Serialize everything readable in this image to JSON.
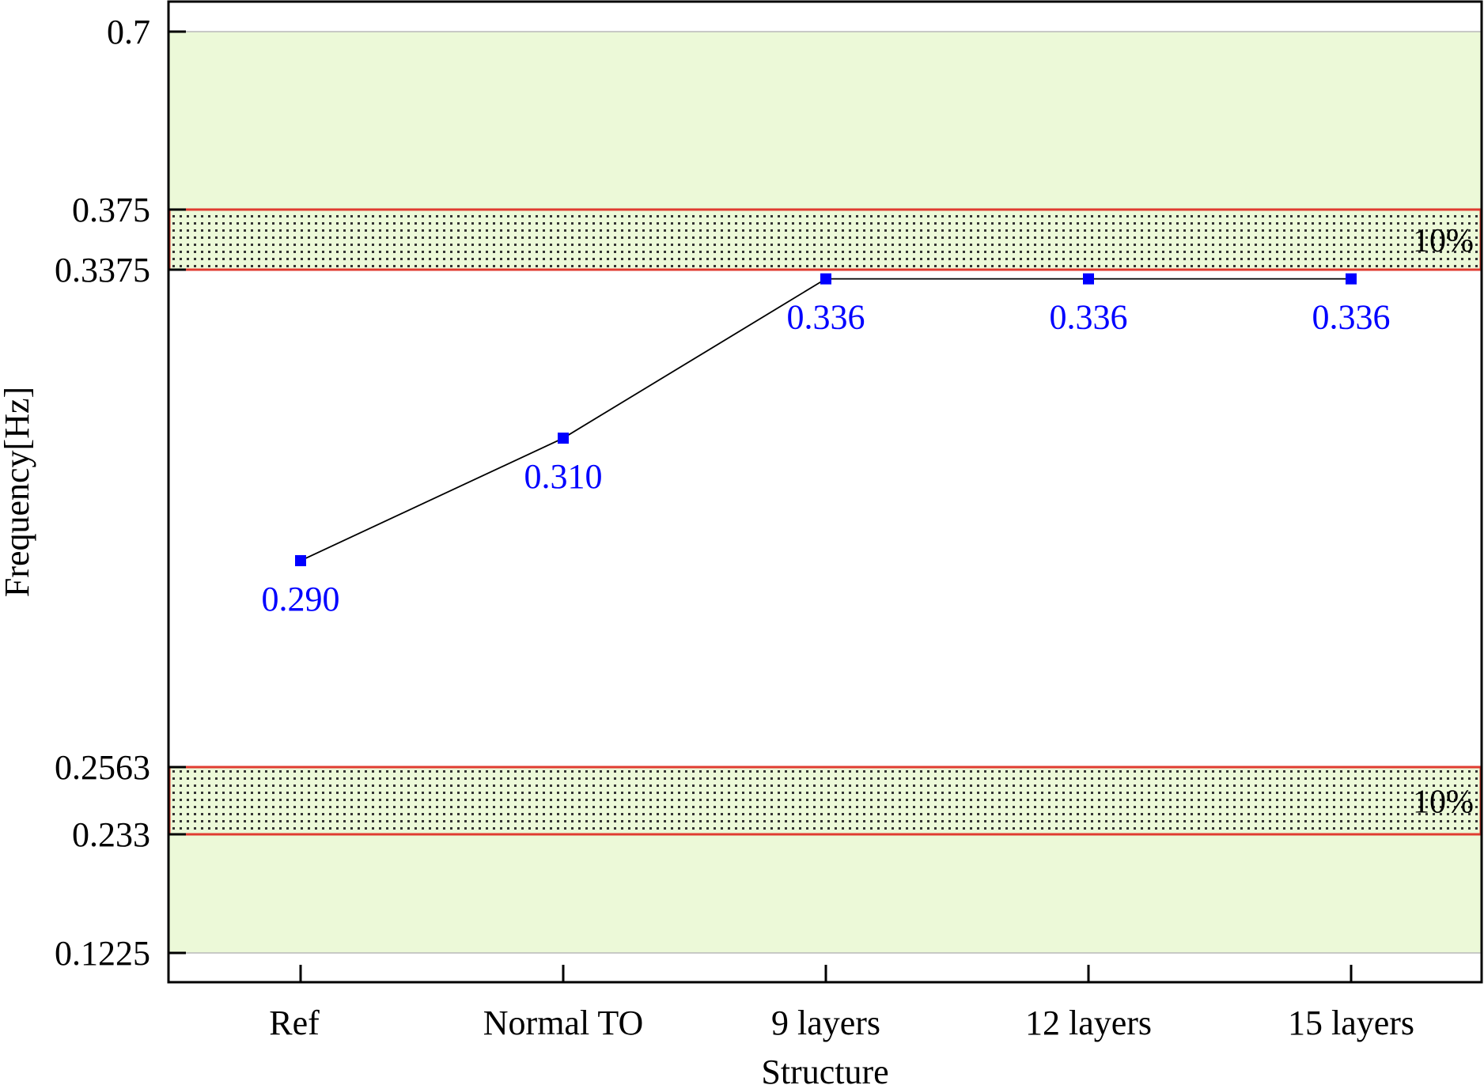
{
  "chart_data": {
    "type": "line",
    "xlabel": "Structure",
    "ylabel": "Frequency[Hz]",
    "categories": [
      "Ref",
      "Normal TO",
      "9 layers",
      "12 layers",
      "15 layers"
    ],
    "series": [
      {
        "values": [
          0.29,
          0.31,
          0.336,
          0.336,
          0.336
        ],
        "labels": [
          "0.290",
          "0.310",
          "0.336",
          "0.336",
          "0.336"
        ],
        "color": "#0000ff"
      }
    ],
    "y_ticks": [
      {
        "value": 0.7,
        "label": "0.7"
      },
      {
        "value": 0.375,
        "label": "0.375"
      },
      {
        "value": 0.3375,
        "label": "0.3375"
      },
      {
        "value": 0.2563,
        "label": "0.2563"
      },
      {
        "value": 0.233,
        "label": "0.233"
      },
      {
        "value": 0.1225,
        "label": "0.1225"
      }
    ],
    "y_axis_segments": [
      {
        "from": 0.1225,
        "to": 0.233
      },
      {
        "from": 0.233,
        "to": 0.2563
      },
      {
        "from": 0.2563,
        "to": 0.3375
      },
      {
        "from": 0.3375,
        "to": 0.375
      },
      {
        "from": 0.375,
        "to": 0.7
      }
    ],
    "ylim": [
      0.1225,
      0.7
    ],
    "shaded_regions": [
      {
        "from": 0.375,
        "to": 0.7,
        "color": "#ecf9d8"
      },
      {
        "from": 0.1225,
        "to": 0.233,
        "color": "#ecf9d8"
      }
    ],
    "hatched_bands": [
      {
        "from": 0.3375,
        "to": 0.375,
        "label": "10%",
        "border_color": "#e03c31"
      },
      {
        "from": 0.233,
        "to": 0.2563,
        "label": "10%",
        "border_color": "#e03c31"
      }
    ],
    "line_color": "#000000",
    "marker_color": "#0000ff"
  }
}
